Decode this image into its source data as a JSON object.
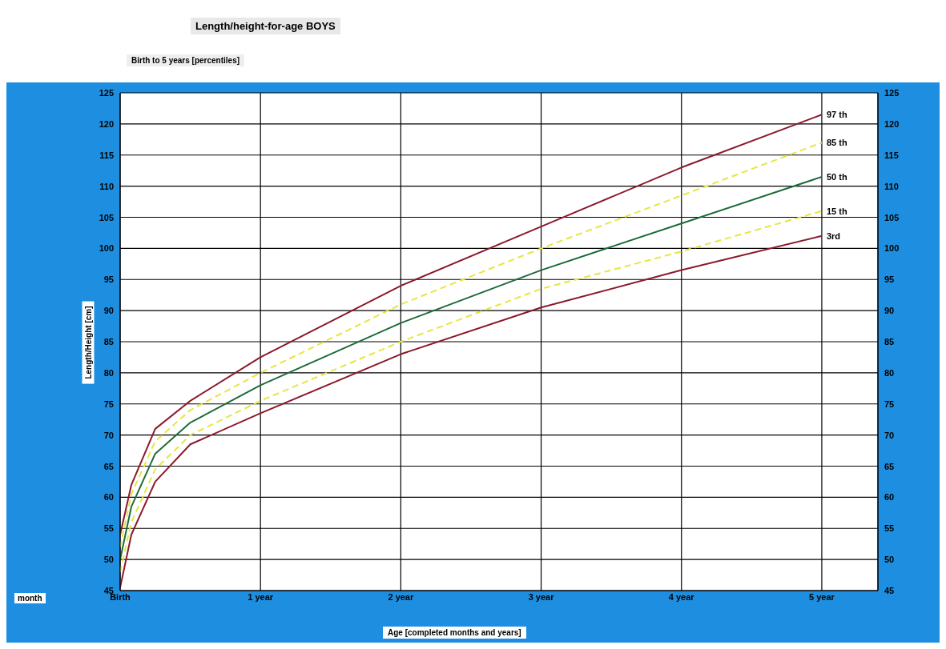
{
  "chart_data": {
    "type": "line",
    "title": "Length/height-for-age BOYS",
    "subtitle": "Birth to 5 years [percentiles]",
    "xlabel": "Age [completed months and years]",
    "ylabel": "Length/Height [cm]",
    "annotations": [
      "month"
    ],
    "x": [
      0,
      0.08,
      0.25,
      0.5,
      1,
      2,
      3,
      4,
      5
    ],
    "series": [
      {
        "name": "97 th",
        "color": "#8b1a2b",
        "line_style": "solid",
        "values": [
          54,
          62,
          71,
          75.5,
          82.5,
          94,
          103.5,
          113,
          121.5
        ]
      },
      {
        "name": "85 th",
        "color": "#e6e640",
        "line_style": "dashed",
        "values": [
          52,
          60.5,
          69,
          74,
          80,
          91,
          100,
          108.5,
          117
        ]
      },
      {
        "name": "50 th",
        "color": "#1f6b3a",
        "line_style": "solid",
        "values": [
          50,
          58.5,
          67,
          72,
          78,
          88,
          96.5,
          104,
          111.5
        ]
      },
      {
        "name": "15 th",
        "color": "#e6e640",
        "line_style": "dashed",
        "values": [
          48,
          56,
          64.5,
          70,
          75.5,
          85,
          93.5,
          99.5,
          106
        ]
      },
      {
        "name": "3rd",
        "color": "#8b1a2b",
        "line_style": "solid",
        "values": [
          45.5,
          54,
          62.5,
          68.5,
          73.5,
          83,
          90.5,
          96.5,
          102
        ]
      }
    ],
    "xlim": [
      0,
      5.4
    ],
    "xticks": [
      {
        "value": 0,
        "label": "Birth"
      },
      {
        "value": 1,
        "label": "1 year"
      },
      {
        "value": 2,
        "label": "2 year"
      },
      {
        "value": 3,
        "label": "3 year"
      },
      {
        "value": 4,
        "label": "4 year"
      },
      {
        "value": 5,
        "label": "5 year"
      }
    ],
    "ylim": [
      45,
      125
    ],
    "yticks": [
      45,
      50,
      55,
      60,
      65,
      70,
      75,
      80,
      85,
      90,
      95,
      100,
      105,
      110,
      115,
      120,
      125
    ],
    "y2lim": [
      45,
      125
    ],
    "y2ticks": [
      45,
      50,
      55,
      60,
      65,
      70,
      75,
      80,
      85,
      90,
      95,
      100,
      105,
      110,
      115,
      120,
      125
    ],
    "grid": true,
    "marker": "none"
  }
}
